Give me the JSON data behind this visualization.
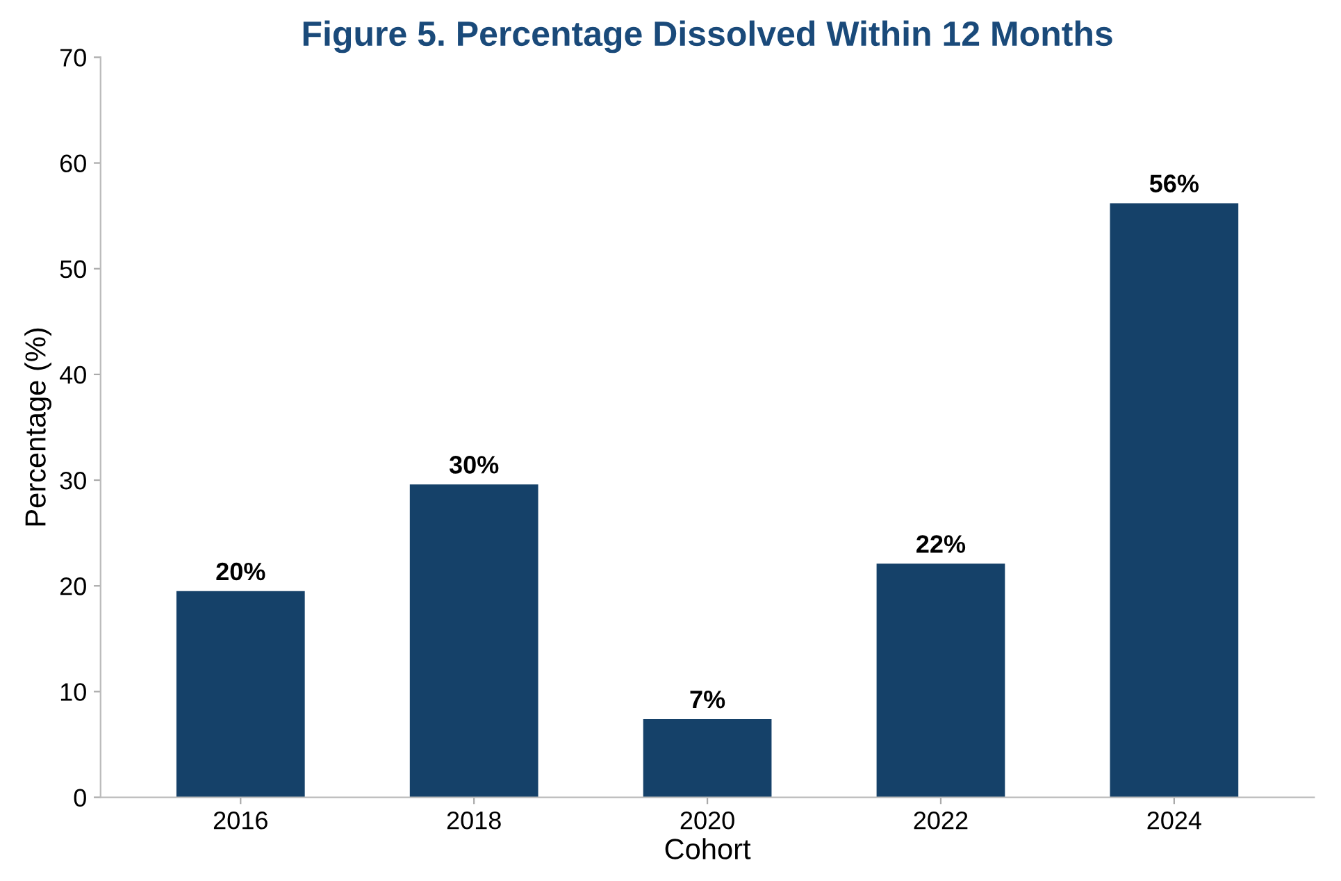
{
  "chart_data": {
    "type": "bar",
    "title": "Figure 5. Percentage Dissolved Within 12 Months",
    "xlabel": "Cohort",
    "ylabel": "Percentage (%)",
    "categories": [
      "2016",
      "2018",
      "2020",
      "2022",
      "2024"
    ],
    "values": [
      19.5,
      29.6,
      7.4,
      22.1,
      56.2
    ],
    "value_labels": [
      "20%",
      "30%",
      "7%",
      "22%",
      "56%"
    ],
    "color": "#154169",
    "ylim": [
      0,
      70
    ],
    "yticks": [
      0,
      10,
      20,
      30,
      40,
      50,
      60,
      70
    ],
    "grid": false,
    "legend": false
  }
}
